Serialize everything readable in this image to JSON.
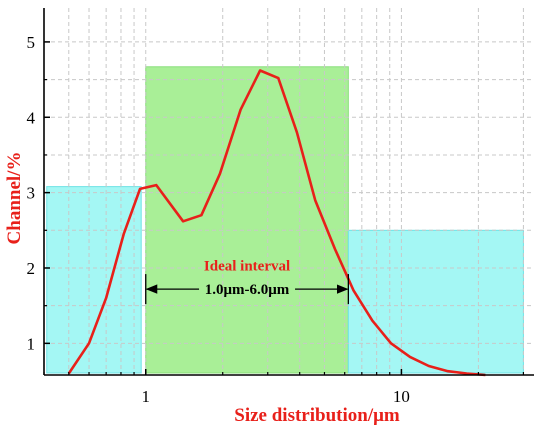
{
  "chart_data": {
    "type": "line",
    "xscale": "log",
    "xlim": [
      0.4,
      33
    ],
    "ylim": [
      0.58,
      5.45
    ],
    "x_ticks": [
      1,
      10
    ],
    "x_tick_labels": [
      "1",
      "10"
    ],
    "y_ticks": [
      1,
      2,
      3,
      4,
      5
    ],
    "y_tick_labels": [
      "1",
      "2",
      "3",
      "4",
      "5"
    ],
    "xlabel": "Size distribution/μm",
    "ylabel": "Channel/%",
    "grid": true,
    "series": [
      {
        "x": [
          0.5,
          0.6,
          0.7,
          0.82,
          0.95,
          1.1,
          1.4,
          1.65,
          1.95,
          2.35,
          2.8,
          3.3,
          3.9,
          4.6,
          5.5,
          6.5,
          7.7,
          9.1,
          10.8,
          12.8,
          15.2,
          18.0,
          21.3
        ],
        "y": [
          0.6,
          1.0,
          1.6,
          2.45,
          3.05,
          3.1,
          2.62,
          2.7,
          3.25,
          4.1,
          4.62,
          4.52,
          3.8,
          2.9,
          2.25,
          1.7,
          1.3,
          1.0,
          0.82,
          0.7,
          0.63,
          0.6,
          0.58
        ],
        "color": "#e8201a"
      }
    ],
    "regions": [
      {
        "x": [
          0.41,
          0.96
        ],
        "y_top": 3.08,
        "color": "#a4f7f4",
        "edge": "#6fe3e6"
      },
      {
        "x": [
          1.0,
          6.2
        ],
        "y_top": 4.67,
        "color": "#a9ef97",
        "edge": "#8adf7b"
      },
      {
        "x": [
          6.2,
          30.0
        ],
        "y_top": 2.5,
        "color": "#a4f7f4",
        "edge": "#6fe3e6"
      }
    ],
    "annotation": {
      "title": "Ideal interval",
      "range_text": "1.0μm-6.0μm",
      "x_from": 1.0,
      "x_to": 6.2,
      "y_title": 2.03,
      "y_arrow": 1.72
    },
    "colors": {
      "line": "#e8201a",
      "axis_title": "#e8201a",
      "grid": "#c8c8c8"
    }
  }
}
